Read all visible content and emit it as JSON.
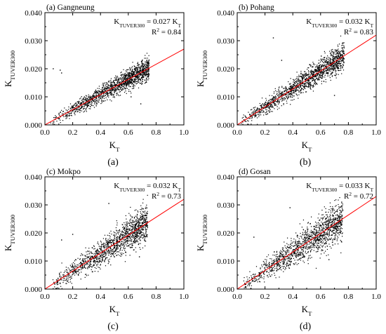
{
  "chart_data": [
    {
      "type": "scatter",
      "title": "(a) Gangneung",
      "caption": "(a)",
      "xlabel": "K",
      "xlabel_sub": "T",
      "ylabel": "K",
      "ylabel_sub": "TUVER300",
      "xlim": [
        0,
        1.0
      ],
      "ylim": [
        0,
        0.04
      ],
      "xticks": [
        "0.0",
        "0.2",
        "0.4",
        "0.6",
        "0.8",
        "1.0"
      ],
      "yticks": [
        "0.000",
        "0.010",
        "0.020",
        "0.030",
        "0.040"
      ],
      "fit": {
        "slope": 0.027,
        "eq_prefix": "K",
        "eq_prefix_sub": "TUVER300",
        "eq_mid": " = 0.027 K",
        "eq_mid_sub": "T",
        "r2_prefix": "R",
        "r2_sup": "2",
        "r2_value": " = 0.84",
        "color": "#ff0000"
      },
      "cloud": {
        "n": 1500,
        "x_min": 0.03,
        "x_max": 0.75,
        "x_skew": 0.55,
        "scatter_sd": 0.0016,
        "heteroscedastic": 0.5,
        "outliers": [
          [
            0.06,
            0.02
          ],
          [
            0.11,
            0.0195
          ],
          [
            0.12,
            0.0185
          ],
          [
            0.62,
            0.01
          ],
          [
            0.69,
            0.0075
          ]
        ]
      }
    },
    {
      "type": "scatter",
      "title": "(b) Pohang",
      "caption": "(b)",
      "xlabel": "K",
      "xlabel_sub": "T",
      "ylabel": "K",
      "ylabel_sub": "TUVER300",
      "xlim": [
        0,
        1.0
      ],
      "ylim": [
        0,
        0.04
      ],
      "xticks": [
        "0.0",
        "0.2",
        "0.4",
        "0.6",
        "0.8",
        "1.0"
      ],
      "yticks": [
        "0.000",
        "0.010",
        "0.020",
        "0.030",
        "0.040"
      ],
      "fit": {
        "slope": 0.032,
        "eq_prefix": "K",
        "eq_prefix_sub": "TUVER300",
        "eq_mid": " = 0.032 K",
        "eq_mid_sub": "T",
        "r2_prefix": "R",
        "r2_sup": "2",
        "r2_value": " = 0.83",
        "color": "#ff0000"
      },
      "cloud": {
        "n": 1500,
        "x_min": 0.02,
        "x_max": 0.77,
        "x_skew": 0.6,
        "scatter_sd": 0.0019,
        "heteroscedastic": 0.5,
        "outliers": [
          [
            0.26,
            0.031
          ],
          [
            0.7,
            0.0105
          ],
          [
            0.32,
            0.023
          ]
        ]
      }
    },
    {
      "type": "scatter",
      "title": "(c) Mokpo",
      "caption": "(c)",
      "xlabel": "K",
      "xlabel_sub": "T",
      "ylabel": "K",
      "ylabel_sub": "TUVER300",
      "xlim": [
        0,
        1.0
      ],
      "ylim": [
        0,
        0.04
      ],
      "xticks": [
        "0.0",
        "0.2",
        "0.4",
        "0.6",
        "0.8",
        "1.0"
      ],
      "yticks": [
        "0.000",
        "0.010",
        "0.020",
        "0.030",
        "0.040"
      ],
      "fit": {
        "slope": 0.032,
        "eq_prefix": "K",
        "eq_prefix_sub": "TUVER300",
        "eq_mid": " = 0.032 K",
        "eq_mid_sub": "T",
        "r2_prefix": "R",
        "r2_sup": "2",
        "r2_value": " = 0.73",
        "color": "#ff0000"
      },
      "cloud": {
        "n": 1400,
        "x_min": 0.03,
        "x_max": 0.74,
        "x_skew": 0.55,
        "scatter_sd": 0.0026,
        "heteroscedastic": 0.6,
        "outliers": [
          [
            0.46,
            0.0305
          ],
          [
            0.12,
            0.0175
          ],
          [
            0.2,
            0.0195
          ],
          [
            0.68,
            0.0115
          ]
        ]
      }
    },
    {
      "type": "scatter",
      "title": "(d) Gosan",
      "caption": "(d)",
      "xlabel": "K",
      "xlabel_sub": "T",
      "ylabel": "K",
      "ylabel_sub": "TUVER300",
      "xlim": [
        0,
        1.0
      ],
      "ylim": [
        0,
        0.04
      ],
      "xticks": [
        "0.0",
        "0.2",
        "0.4",
        "0.6",
        "0.8",
        "1.0"
      ],
      "yticks": [
        "0.000",
        "0.010",
        "0.020",
        "0.030",
        "0.040"
      ],
      "fit": {
        "slope": 0.033,
        "eq_prefix": "K",
        "eq_prefix_sub": "TUVER300",
        "eq_mid": " = 0.033 K",
        "eq_mid_sub": "T",
        "r2_prefix": "R",
        "r2_sup": "2",
        "r2_value": " = 0.72",
        "color": "#ff0000"
      },
      "cloud": {
        "n": 1400,
        "x_min": 0.03,
        "x_max": 0.76,
        "x_skew": 0.6,
        "scatter_sd": 0.0028,
        "heteroscedastic": 0.6,
        "outliers": [
          [
            0.38,
            0.029
          ],
          [
            0.76,
            0.028
          ],
          [
            0.12,
            0.0185
          ],
          [
            0.66,
            0.0105
          ]
        ]
      }
    }
  ]
}
